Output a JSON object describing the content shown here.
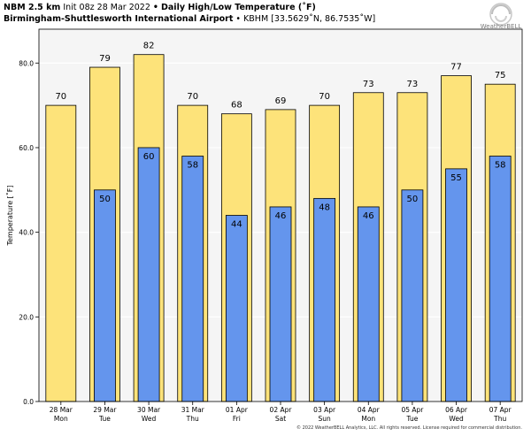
{
  "header": {
    "model": "NBM 2.5 km",
    "init": "Init 08z 28 Mar 2022",
    "sep": "•",
    "product": "Daily High/Low Temperature (˚F)",
    "location": "Birmingham-Shuttlesworth International Airport",
    "station": "KBHM [33.5629˚N, 86.7535˚W]"
  },
  "logo": {
    "text": "WeatherBELL"
  },
  "footer": "© 2022 WeatherBELL Analytics, LLC. All rights reserved. License required for commercial distribution.",
  "colors": {
    "high": "#fde37a",
    "low": "#6495ed",
    "plot_bg": "#f5f5f5",
    "grid": "#ffffff"
  },
  "chart_data": {
    "type": "bar",
    "ylabel": "Temperature [˚F]",
    "ylim": [
      0,
      88
    ],
    "yticks": [
      0,
      20,
      40,
      60,
      80
    ],
    "ytick_labels": [
      "0.0",
      "20.0",
      "40.0",
      "60.0",
      "80.0"
    ],
    "grid": "horizontal",
    "categories": [
      [
        "28 Mar",
        "Mon"
      ],
      [
        "29 Mar",
        "Tue"
      ],
      [
        "30 Mar",
        "Wed"
      ],
      [
        "31 Mar",
        "Thu"
      ],
      [
        "01 Apr",
        "Fri"
      ],
      [
        "02 Apr",
        "Sat"
      ],
      [
        "03 Apr",
        "Sun"
      ],
      [
        "04 Apr",
        "Mon"
      ],
      [
        "05 Apr",
        "Tue"
      ],
      [
        "06 Apr",
        "Wed"
      ],
      [
        "07 Apr",
        "Thu"
      ]
    ],
    "series": [
      {
        "role": "high",
        "values": [
          70,
          79,
          82,
          70,
          68,
          69,
          70,
          73,
          73,
          77,
          75
        ],
        "labels": [
          "70",
          "79",
          "82",
          "70",
          "68",
          "69",
          "70",
          "73",
          "73",
          "77",
          "75"
        ]
      },
      {
        "role": "low",
        "values": [
          null,
          50,
          60,
          58,
          44,
          46,
          48,
          46,
          50,
          55,
          58
        ],
        "labels": [
          "",
          "50",
          "60",
          "58",
          "44",
          "46",
          "48",
          "46",
          "50",
          "55",
          "58"
        ]
      }
    ]
  }
}
